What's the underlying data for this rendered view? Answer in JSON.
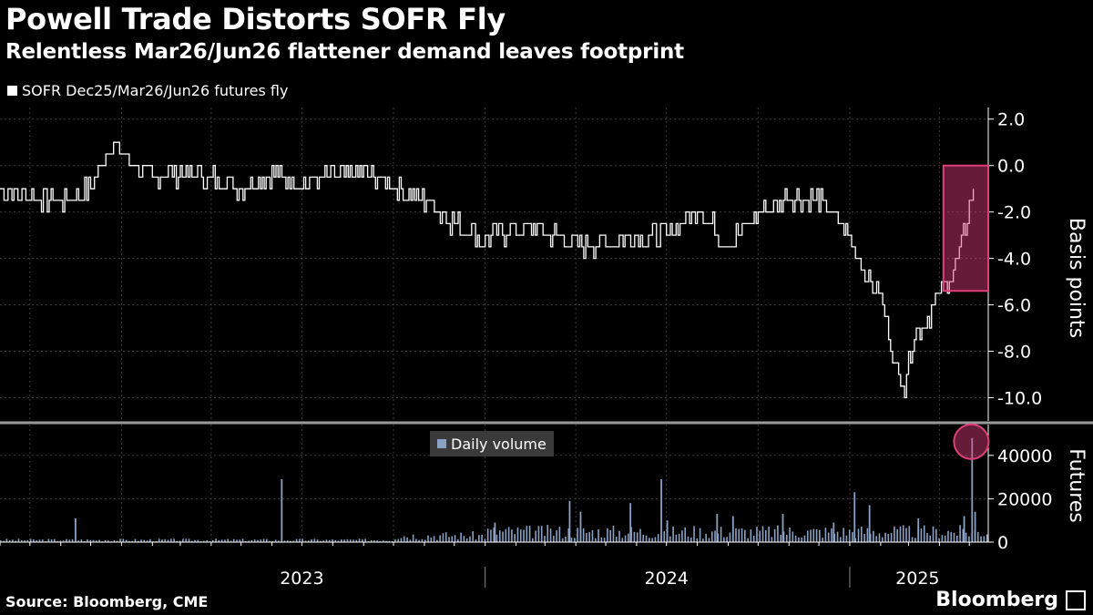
{
  "header": {
    "title": "Powell Trade Distorts SOFR Fly",
    "subtitle": "Relentless Mar26/Jun26 flattener demand leaves footprint"
  },
  "footer": {
    "source": "Source: Bloomberg, CME",
    "brand": "Bloomberg"
  },
  "colors": {
    "background": "#000000",
    "fly_line": "#ffffff",
    "volume_bars": "#8aa1c4",
    "highlight": "#e0407a",
    "grid": "#3c3c3c"
  },
  "chart_data": [
    {
      "type": "line",
      "legend": "SOFR Dec25/Mar26/Jun26 futures fly",
      "ylabel": "Basis points",
      "ylim": [
        -11,
        2.5
      ],
      "yticks": [
        2.0,
        0.0,
        -2.0,
        -4.0,
        -6.0,
        -8.0,
        -10.0
      ],
      "ytick_labels": [
        "2.0",
        "0.0",
        "-2.0",
        "-4.0",
        "-6.0",
        "-8.0",
        "-10.0"
      ],
      "x_range": [
        "2022-09-01",
        "2025-05-20"
      ],
      "grid": true,
      "highlight_box": {
        "x": [
          "2025-04-05",
          "2025-05-20"
        ],
        "y": [
          -5.4,
          0.0
        ]
      },
      "series": [
        {
          "name": "SOFR Dec25/Mar26/Jun26 futures fly",
          "points": [
            [
              "2022-09-01",
              -1.0
            ],
            [
              "2022-10-01",
              -1.3
            ],
            [
              "2022-11-01",
              -1.5
            ],
            [
              "2022-12-01",
              -1.0
            ],
            [
              "2022-12-20",
              0.8
            ],
            [
              "2023-01-01",
              0.5
            ],
            [
              "2023-02-01",
              -0.5
            ],
            [
              "2023-03-01",
              -0.3
            ],
            [
              "2023-04-01",
              -0.5
            ],
            [
              "2023-05-01",
              -1.0
            ],
            [
              "2023-06-01",
              -0.4
            ],
            [
              "2023-07-01",
              -0.8
            ],
            [
              "2023-08-01",
              -0.5
            ],
            [
              "2023-09-01",
              -0.3
            ],
            [
              "2023-10-01",
              -1.0
            ],
            [
              "2023-11-01",
              -1.5
            ],
            [
              "2023-12-01",
              -2.5
            ],
            [
              "2024-01-01",
              -3.2
            ],
            [
              "2024-02-01",
              -2.7
            ],
            [
              "2024-03-01",
              -2.8
            ],
            [
              "2024-04-01",
              -3.5
            ],
            [
              "2024-05-01",
              -3.3
            ],
            [
              "2024-06-01",
              -3.2
            ],
            [
              "2024-07-01",
              -3.0
            ],
            [
              "2024-08-01",
              -1.8
            ],
            [
              "2024-09-01",
              -3.4
            ],
            [
              "2024-10-01",
              -2.0
            ],
            [
              "2024-11-01",
              -1.3
            ],
            [
              "2024-12-01",
              -1.5
            ],
            [
              "2025-01-01",
              -3.0
            ],
            [
              "2025-01-20",
              -5.0
            ],
            [
              "2025-02-01",
              -5.5
            ],
            [
              "2025-02-15",
              -8.5
            ],
            [
              "2025-02-25",
              -9.5
            ],
            [
              "2025-03-05",
              -7.5
            ],
            [
              "2025-03-20",
              -6.5
            ],
            [
              "2025-04-01",
              -5.5
            ],
            [
              "2025-04-15",
              -4.5
            ],
            [
              "2025-04-25",
              -3.0
            ],
            [
              "2025-05-05",
              -1.0
            ]
          ]
        }
      ]
    },
    {
      "type": "bar",
      "legend": "Daily volume",
      "ylabel": "Futures",
      "ylim": [
        0,
        50000
      ],
      "yticks": [
        0,
        20000,
        40000
      ],
      "ytick_labels": [
        "0",
        "20000",
        "40000"
      ],
      "x_labels": [
        "2023",
        "2024",
        "2025"
      ],
      "series": [
        {
          "name": "Daily volume",
          "points": [
            [
              "2022-11-15",
              11000
            ],
            [
              "2023-06-10",
              29000
            ],
            [
              "2024-01-10",
              9000
            ],
            [
              "2024-03-25",
              19000
            ],
            [
              "2024-04-05",
              14000
            ],
            [
              "2024-05-25",
              18000
            ],
            [
              "2024-06-25",
              29000
            ],
            [
              "2024-07-01",
              10000
            ],
            [
              "2024-08-20",
              13000
            ],
            [
              "2024-09-05",
              12000
            ],
            [
              "2024-10-25",
              13000
            ],
            [
              "2024-12-15",
              9000
            ],
            [
              "2025-01-05",
              23000
            ],
            [
              "2025-01-20",
              17000
            ],
            [
              "2025-03-10",
              11000
            ],
            [
              "2025-04-25",
              12000
            ],
            [
              "2025-05-03",
              48000
            ],
            [
              "2025-05-06",
              14000
            ]
          ]
        }
      ]
    }
  ]
}
